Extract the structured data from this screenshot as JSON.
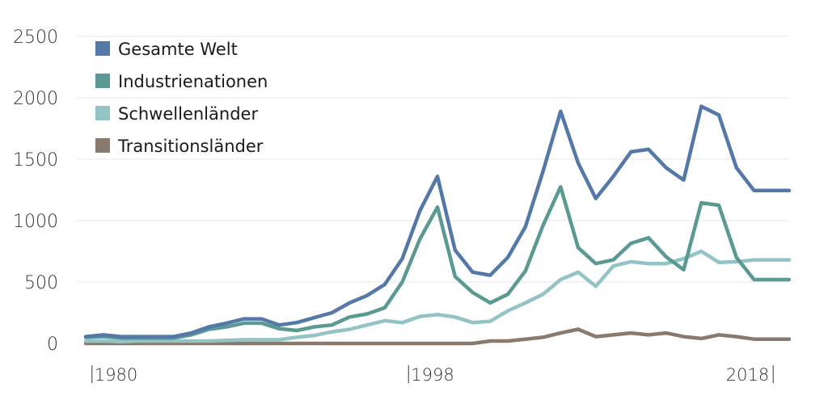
{
  "chart_data": {
    "type": "line",
    "title": "",
    "xlabel": "",
    "ylabel": "",
    "ylim": [
      0,
      2500
    ],
    "yticks": [
      "0",
      "500",
      "1000",
      "1500",
      "2000",
      "2500"
    ],
    "xtick_labels": [
      {
        "year": 1980,
        "label": "1980"
      },
      {
        "year": 1998,
        "label": "1998"
      },
      {
        "year": 2018,
        "label": "2018"
      }
    ],
    "x": [
      1979,
      1980,
      1981,
      1982,
      1983,
      1984,
      1985,
      1986,
      1987,
      1988,
      1989,
      1990,
      1991,
      1992,
      1993,
      1994,
      1995,
      1996,
      1997,
      1998,
      1999,
      2000,
      2001,
      2002,
      2003,
      2004,
      2005,
      2006,
      2007,
      2008,
      2009,
      2010,
      2011,
      2012,
      2013,
      2014,
      2015,
      2016,
      2017,
      2018,
      2019
    ],
    "grid": true,
    "legend_position": "top-left",
    "series": [
      {
        "name": "Gesamte Welt",
        "color": "#5479a8",
        "values": [
          55,
          70,
          55,
          55,
          55,
          55,
          85,
          135,
          165,
          200,
          200,
          150,
          170,
          210,
          250,
          330,
          390,
          480,
          690,
          1080,
          1360,
          760,
          580,
          555,
          700,
          950,
          1400,
          1890,
          1470,
          1180,
          1360,
          1560,
          1580,
          1430,
          1330,
          1930,
          1860,
          1430,
          1245,
          1245,
          1245
        ]
      },
      {
        "name": "Industrienationen",
        "color": "#5a9a93",
        "values": [
          50,
          55,
          45,
          45,
          45,
          45,
          70,
          115,
          135,
          165,
          165,
          120,
          105,
          135,
          150,
          215,
          240,
          290,
          500,
          850,
          1110,
          545,
          415,
          330,
          400,
          590,
          960,
          1275,
          780,
          650,
          680,
          815,
          860,
          705,
          600,
          1145,
          1125,
          700,
          520,
          520,
          520
        ]
      },
      {
        "name": "Schwellenländer",
        "color": "#94c3c6",
        "values": [
          20,
          20,
          15,
          20,
          20,
          20,
          20,
          20,
          25,
          30,
          30,
          30,
          50,
          65,
          95,
          115,
          150,
          185,
          170,
          220,
          235,
          215,
          170,
          180,
          265,
          330,
          400,
          520,
          580,
          465,
          630,
          665,
          650,
          650,
          690,
          750,
          660,
          665,
          680,
          680,
          680
        ]
      },
      {
        "name": "Transitionsländer",
        "color": "#8a7a6e",
        "values": [
          0,
          0,
          0,
          0,
          0,
          0,
          0,
          0,
          0,
          0,
          0,
          0,
          0,
          0,
          0,
          0,
          0,
          0,
          0,
          0,
          0,
          0,
          0,
          20,
          20,
          35,
          50,
          85,
          115,
          55,
          70,
          85,
          70,
          85,
          55,
          40,
          70,
          55,
          35,
          35,
          35
        ]
      }
    ]
  }
}
